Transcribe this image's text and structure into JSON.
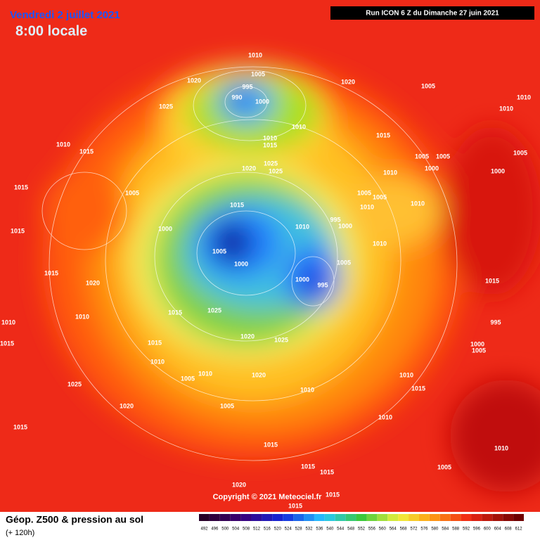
{
  "header": {
    "date": "Vendredi 2 juillet 2021",
    "time": "8:00 locale",
    "run": "Run ICON 6 Z du Dimanche 27 juin 2021"
  },
  "copyright": "Copyright © 2021 Meteociel.fr",
  "legend": {
    "title": "Géop. Z500 & pression au sol",
    "lead": "(+ 120h)",
    "scale": [
      492,
      496,
      500,
      504,
      508,
      512,
      516,
      520,
      524,
      528,
      532,
      536,
      540,
      544,
      548,
      552,
      556,
      560,
      564,
      568,
      572,
      576,
      580,
      584,
      588,
      592,
      596,
      600,
      604,
      608,
      612
    ]
  },
  "isobar_labels": [
    "1010",
    "1005",
    "1020",
    "995",
    "990",
    "1000",
    "1025",
    "1020",
    "1005",
    "1010",
    "1010",
    "1010",
    "1010",
    "1015",
    "1015",
    "1010",
    "1015",
    "1005",
    "1005",
    "1005",
    "1025",
    "1020",
    "1025",
    "1010",
    "1000",
    "1000",
    "1015",
    "1005",
    "1005",
    "1005",
    "1010",
    "1010",
    "1015",
    "1010",
    "995",
    "1000",
    "1000",
    "1015",
    "1010",
    "1005",
    "1000",
    "1005",
    "1000",
    "995",
    "1020",
    "1015",
    "1015",
    "1025",
    "1010",
    "1010",
    "1015",
    "1015",
    "1010",
    "1020",
    "1025",
    "1005",
    "1010",
    "1020",
    "1025",
    "1020",
    "1005",
    "1010",
    "1010",
    "1015",
    "1010",
    "1015",
    "1015",
    "1015",
    "1015",
    "1005",
    "1010",
    "1015",
    "995",
    "1000",
    "1005",
    "1020",
    "1015",
    "1015"
  ]
}
